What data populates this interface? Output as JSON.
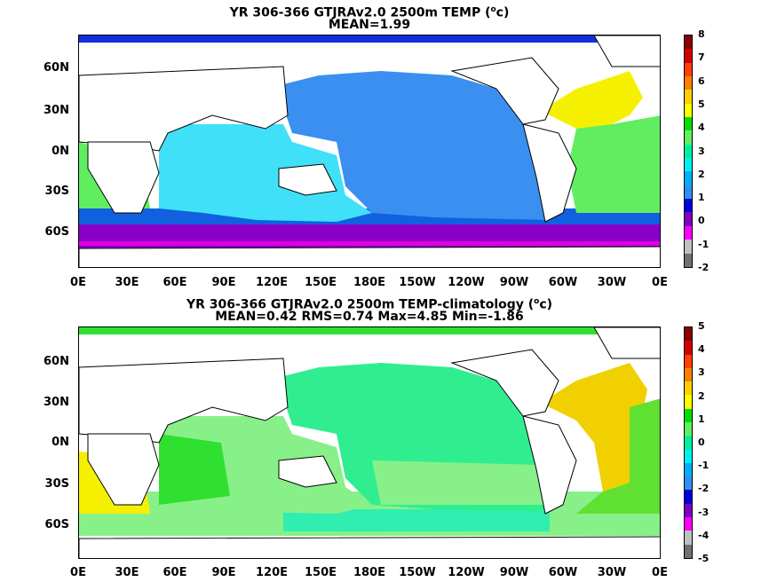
{
  "panels": [
    {
      "title_line1": "YR 306-366 GTJRAv2.0 2500m TEMP (",
      "title_unit_sup": "o",
      "title_unit_end": "c)",
      "title_line2": "MEAN=1.99",
      "lat_labels": [
        "60N",
        "30N",
        "0N",
        "30S",
        "60S"
      ],
      "lon_labels": [
        "0E",
        "30E",
        "60E",
        "90E",
        "120E",
        "150E",
        "180E",
        "150W",
        "120W",
        "90W",
        "60W",
        "30W",
        "0E"
      ],
      "colorbar": {
        "ticks": [
          "8",
          "7",
          "6",
          "5",
          "4",
          "3",
          "2",
          "1",
          "0",
          "-1",
          "-2"
        ],
        "colors": [
          "#8b0000",
          "#d40000",
          "#ff4000",
          "#ff8000",
          "#ffd000",
          "#ffff00",
          "#00e000",
          "#60f060",
          "#00f0a0",
          "#00f0f0",
          "#00b0ff",
          "#3090f0",
          "#0000e0",
          "#8000c0",
          "#ff00ff",
          "#c0c0c0",
          "#707070"
        ]
      },
      "regions": {
        "pacific": "#3a8ff0",
        "indian": "#40e0f8",
        "atlantic_north": "#f5f000",
        "atlantic_south": "#60ee60",
        "southern": "#1060e0",
        "antarctic": "#8a00c8"
      }
    },
    {
      "title_line1": "YR 306-366 GTJRAv2.0 2500m TEMP-climatology (",
      "title_unit_sup": "o",
      "title_unit_end": "c)",
      "title_line2": "MEAN=0.42   RMS=0.74   Max=4.85   Min=-1.86",
      "lat_labels": [
        "60N",
        "30N",
        "0N",
        "30S",
        "60S"
      ],
      "lon_labels": [
        "0E",
        "30E",
        "60E",
        "90E",
        "120E",
        "150E",
        "180E",
        "150W",
        "120W",
        "90W",
        "60W",
        "30W",
        "0E"
      ],
      "colorbar": {
        "ticks": [
          "5",
          "4",
          "3",
          "2",
          "1",
          "0",
          "-1",
          "-2",
          "-3",
          "-4",
          "-5"
        ],
        "colors": [
          "#8b0000",
          "#d40000",
          "#ff4000",
          "#ff8000",
          "#ffd000",
          "#ffff00",
          "#00e000",
          "#60f060",
          "#00f0a0",
          "#00f0f0",
          "#00b0ff",
          "#3090f0",
          "#0000e0",
          "#8000c0",
          "#ff00ff",
          "#c0c0c0",
          "#707070"
        ]
      },
      "regions": {
        "pacific": "#30ee90",
        "indian": "#88f088",
        "atlantic_north": "#f0d000",
        "atlantic_south": "#60e030",
        "southern": "#88f088",
        "antarctic": "#30eeb0"
      }
    }
  ]
}
